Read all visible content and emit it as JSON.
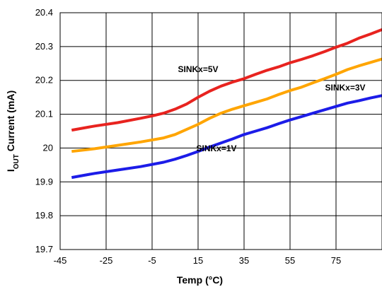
{
  "chart_data": {
    "type": "line",
    "xlabel": "Temp (°C)",
    "ylabel": {
      "main": "I",
      "sub": "OUT",
      "rest": " Current (mA)"
    },
    "xlim": [
      -45,
      95
    ],
    "ylim": [
      19.7,
      20.4
    ],
    "xticks": [
      -45,
      -25,
      -5,
      15,
      35,
      55,
      75
    ],
    "yticks": [
      19.7,
      19.8,
      19.9,
      20,
      20.1,
      20.2,
      20.3,
      20.4
    ],
    "xtick_labels": [
      "-45",
      "-25",
      "-5",
      "15",
      "35",
      "55",
      "75"
    ],
    "ytick_labels": [
      "19.7",
      "19.8",
      "19.9",
      "20",
      "20.1",
      "20.2",
      "20.3",
      "20.4"
    ],
    "grid": true,
    "series": [
      {
        "name": "SINKx=5V",
        "color": "#e8231f",
        "x": [
          -40,
          -30,
          -20,
          -10,
          -5,
          0,
          5,
          10,
          15,
          20,
          25,
          30,
          35,
          40,
          45,
          50,
          55,
          60,
          65,
          70,
          75,
          80,
          85,
          90,
          95
        ],
        "y": [
          20.053,
          20.065,
          20.075,
          20.088,
          20.095,
          20.103,
          20.115,
          20.13,
          20.15,
          20.168,
          20.183,
          20.195,
          20.205,
          20.218,
          20.23,
          20.24,
          20.252,
          20.262,
          20.273,
          20.285,
          20.298,
          20.31,
          20.325,
          20.337,
          20.35
        ]
      },
      {
        "name": "SINKx=3V",
        "color": "#ffa500",
        "x": [
          -40,
          -30,
          -20,
          -10,
          0,
          5,
          10,
          15,
          20,
          25,
          30,
          35,
          40,
          45,
          50,
          55,
          60,
          65,
          70,
          75,
          80,
          85,
          90,
          95
        ],
        "y": [
          19.99,
          19.998,
          20.008,
          20.018,
          20.03,
          20.04,
          20.055,
          20.07,
          20.088,
          20.103,
          20.115,
          20.125,
          20.135,
          20.145,
          20.158,
          20.17,
          20.18,
          20.193,
          20.205,
          20.218,
          20.232,
          20.243,
          20.253,
          20.263
        ]
      },
      {
        "name": "SINKx=1V",
        "color": "#1c1ce8",
        "x": [
          -40,
          -30,
          -20,
          -10,
          0,
          5,
          10,
          15,
          20,
          25,
          30,
          35,
          40,
          45,
          50,
          55,
          60,
          65,
          70,
          75,
          80,
          85,
          90,
          95
        ],
        "y": [
          19.913,
          19.925,
          19.935,
          19.945,
          19.958,
          19.967,
          19.978,
          19.99,
          20.003,
          20.015,
          20.027,
          20.04,
          20.05,
          20.06,
          20.072,
          20.083,
          20.093,
          20.103,
          20.113,
          20.123,
          20.133,
          20.14,
          20.148,
          20.155
        ]
      }
    ],
    "labels": [
      {
        "text": "SINKx=5V",
        "x": 15,
        "y": 20.225
      },
      {
        "text": "SINKx=3V",
        "x": 79,
        "y": 20.17
      },
      {
        "text": "SINKx=1V",
        "x": 23,
        "y": 19.99
      }
    ]
  }
}
